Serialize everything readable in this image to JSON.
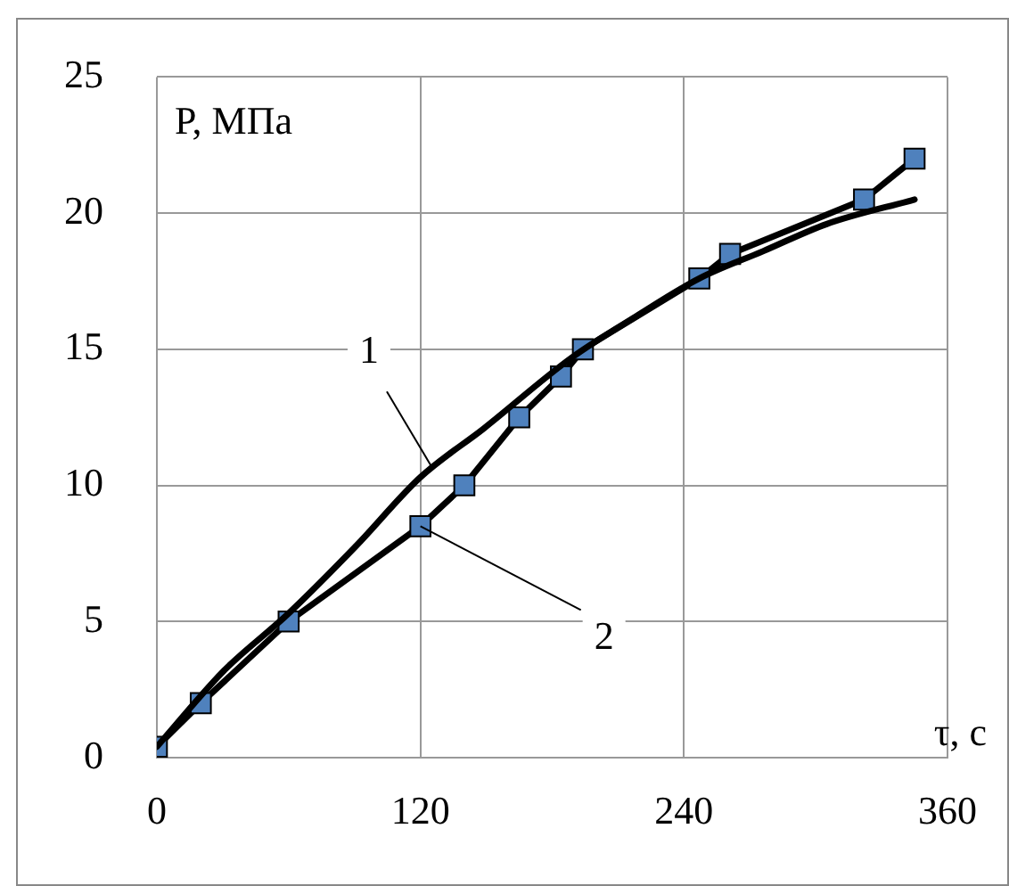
{
  "chart_data": {
    "type": "line",
    "xlabel": "τ, с",
    "ylabel": "P, МПа",
    "xlim": [
      0,
      360
    ],
    "xticks": [
      0,
      120,
      240,
      360
    ],
    "ylim": [
      0,
      25
    ],
    "yticks": [
      0,
      5,
      10,
      15,
      20,
      25
    ],
    "grid": true,
    "legend": false,
    "line_style": "solid",
    "series": [
      {
        "color": "#000000",
        "marker": "none",
        "x": [
          0,
          30.6,
          60,
          91,
          120,
          149,
          189,
          218,
          247,
          276,
          305,
          345
        ],
        "values": [
          0.4,
          3.2,
          5.3,
          7.8,
          10.3,
          12.1,
          14.7,
          16.2,
          17.6,
          18.6,
          19.6,
          20.5
        ]
      },
      {
        "color": "#4f81bd",
        "marker": "square",
        "x": [
          0,
          20,
          60,
          120,
          140,
          165,
          184,
          194,
          247,
          261,
          322,
          345
        ],
        "values": [
          0.4,
          2.0,
          5.0,
          8.5,
          10.0,
          12.5,
          14.0,
          15.0,
          17.6,
          18.5,
          20.5,
          22.0
        ]
      }
    ],
    "annotations": [
      {
        "text": "1",
        "x": 125,
        "y": 10.7
      },
      {
        "text": "2",
        "x": 120,
        "y": 8.5
      }
    ]
  }
}
